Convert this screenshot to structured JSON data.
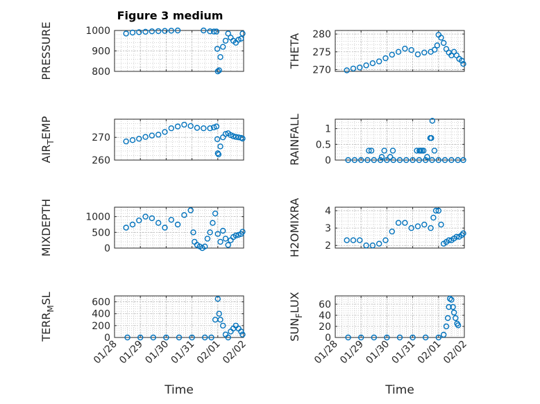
{
  "figure": {
    "title": "Figure 3 medium"
  },
  "colors": {
    "marker": "#0072BD",
    "axis": "#262626",
    "grid": "#b5b5b5",
    "background": "#ffffff"
  },
  "chart_data": [
    {
      "type": "scatter",
      "ylabel": "PRESSURE",
      "xlabel": "",
      "xlim": [
        "01/28",
        "02/02"
      ],
      "xticks": [],
      "ylim": [
        800,
        1000
      ],
      "yticks": [
        800,
        900,
        1000
      ],
      "grid": true,
      "x": [
        "01/28 10:48",
        "01/28 16:48",
        "01/28 22:48",
        "01/29 04:48",
        "01/29 10:48",
        "01/29 16:48",
        "01/29 22:48",
        "01/30 04:48",
        "01/30 10:48",
        "01/30 16:48",
        "01/30 22:48",
        "01/31 04:48",
        "01/31 10:48",
        "01/31 16:48",
        "01/31 20:24",
        "01/31 22:48",
        "01/31 23:31",
        "02/01 00:00",
        "02/01 01:12",
        "02/01 02:24",
        "02/01 04:48",
        "02/01 07:12",
        "02/01 09:36",
        "02/01 12:00",
        "02/01 14:24",
        "02/01 16:48",
        "02/01 19:12",
        "02/01 21:36",
        "02/01 23:02"
      ],
      "y": [
        985,
        990,
        992,
        994,
        996,
        997,
        998,
        999,
        1000,
        1001,
        1002,
        1001,
        1000,
        996,
        995,
        995,
        910,
        800,
        805,
        870,
        920,
        950,
        985,
        965,
        950,
        940,
        955,
        960,
        985
      ]
    },
    {
      "type": "scatter",
      "ylabel": "THETA",
      "xlabel": "",
      "xlim": [
        "01/28",
        "02/02"
      ],
      "xticks": [],
      "ylim": [
        269.5,
        281
      ],
      "yticks": [
        270,
        275,
        280
      ],
      "grid": true,
      "x": [
        "01/28 10:48",
        "01/28 16:48",
        "01/28 22:48",
        "01/29 04:48",
        "01/29 10:48",
        "01/29 16:48",
        "01/29 22:48",
        "01/30 04:48",
        "01/30 10:48",
        "01/30 16:48",
        "01/30 22:48",
        "01/31 04:48",
        "01/31 10:48",
        "01/31 16:48",
        "01/31 20:24",
        "01/31 22:48",
        "02/01 00:00",
        "02/01 02:24",
        "02/01 04:48",
        "02/01 07:12",
        "02/01 09:36",
        "02/01 12:00",
        "02/01 14:24",
        "02/01 16:48",
        "02/01 19:12",
        "02/01 21:36",
        "02/01 23:02"
      ],
      "y": [
        269.8,
        270.3,
        270.6,
        271.2,
        271.8,
        272.3,
        273.2,
        274.2,
        275.0,
        275.9,
        275.5,
        274.3,
        274.8,
        275.0,
        275.6,
        276.8,
        279.8,
        279.0,
        277.5,
        275.8,
        274.8,
        274.0,
        275.0,
        274.0,
        273.0,
        272.5,
        271.6
      ]
    },
    {
      "type": "scatter",
      "ylabel": "AIR_TEMP",
      "xlabel": "",
      "xlim": [
        "01/28",
        "02/02"
      ],
      "xticks": [],
      "ylim": [
        260,
        278
      ],
      "yticks": [
        260,
        270
      ],
      "grid": true,
      "x": [
        "01/28 10:48",
        "01/28 16:48",
        "01/28 22:48",
        "01/29 04:48",
        "01/29 10:48",
        "01/29 16:48",
        "01/29 22:48",
        "01/30 04:48",
        "01/30 10:48",
        "01/30 16:48",
        "01/30 22:48",
        "01/31 04:48",
        "01/31 10:48",
        "01/31 16:48",
        "01/31 20:24",
        "01/31 22:48",
        "01/31 23:31",
        "02/01 00:00",
        "02/01 00:43",
        "02/01 02:24",
        "02/01 04:48",
        "02/01 07:12",
        "02/01 09:36",
        "02/01 12:00",
        "02/01 14:24",
        "02/01 16:48",
        "02/01 19:12",
        "02/01 21:36",
        "02/01 23:02"
      ],
      "y": [
        268.2,
        268.8,
        269.4,
        270.2,
        270.8,
        271.2,
        272.4,
        274.0,
        274.8,
        275.6,
        275.0,
        274.2,
        274.0,
        274.0,
        274.4,
        274.8,
        269.2,
        263.0,
        262.5,
        266.0,
        270.0,
        271.5,
        271.8,
        271.0,
        270.5,
        270.2,
        270.0,
        269.8,
        269.5
      ]
    },
    {
      "type": "scatter",
      "ylabel": "RAINFALL",
      "xlabel": "",
      "xlim": [
        "01/28",
        "02/02"
      ],
      "xticks": [],
      "ylim": [
        0,
        1.3
      ],
      "yticks": [
        0,
        0.5,
        1
      ],
      "grid": true,
      "x": [
        "01/28 12:00",
        "01/28 18:00",
        "01/29 00:00",
        "01/29 06:00",
        "01/29 12:00",
        "01/29 18:00",
        "01/30 00:00",
        "01/30 06:00",
        "01/30 12:00",
        "01/30 18:00",
        "01/31 00:00",
        "01/31 06:00",
        "01/31 12:00",
        "01/31 18:00",
        "02/01 00:00",
        "02/01 06:00",
        "02/01 12:00",
        "02/01 18:00",
        "02/01 23:00",
        "01/29 07:12",
        "01/29 09:36",
        "01/29 19:12",
        "01/29 21:36",
        "01/30 03:07",
        "01/30 05:31",
        "01/31 03:50",
        "01/31 06:14",
        "01/31 07:12",
        "01/31 08:38",
        "01/31 10:05",
        "01/31 13:26",
        "01/31 16:19",
        "01/31 17:17",
        "01/31 18:14",
        "01/31 20:10"
      ],
      "y": [
        0,
        0,
        0,
        0,
        0,
        0,
        0,
        0,
        0,
        0,
        0,
        0,
        0,
        0,
        0,
        0,
        0,
        0,
        0,
        0.3,
        0.3,
        0.1,
        0.3,
        0.1,
        0.3,
        0.3,
        0.3,
        0.3,
        0.3,
        0.3,
        0.1,
        0.7,
        0.7,
        1.25,
        0.3
      ]
    },
    {
      "type": "scatter",
      "ylabel": "MIXDEPTH",
      "xlabel": "",
      "xlim": [
        "01/28",
        "02/02"
      ],
      "xticks": [],
      "ylim": [
        0,
        1300
      ],
      "yticks": [
        0,
        500,
        1000
      ],
      "grid": true,
      "x": [
        "01/28 10:48",
        "01/28 16:48",
        "01/28 22:48",
        "01/29 04:48",
        "01/29 10:48",
        "01/29 16:48",
        "01/29 22:48",
        "01/30 04:48",
        "01/30 10:48",
        "01/30 16:48",
        "01/30 22:48",
        "01/31 01:12",
        "01/31 02:24",
        "01/31 04:48",
        "01/31 07:12",
        "01/31 09:36",
        "01/31 12:00",
        "01/31 14:24",
        "01/31 16:48",
        "01/31 19:12",
        "01/31 21:36",
        "02/01 00:00",
        "02/01 02:24",
        "02/01 04:48",
        "02/01 07:12",
        "02/01 09:36",
        "02/01 12:00",
        "02/01 14:24",
        "02/01 16:48",
        "02/01 19:12",
        "02/01 21:36",
        "02/01 23:02"
      ],
      "y": [
        650,
        750,
        880,
        1000,
        950,
        800,
        650,
        900,
        750,
        1050,
        1200,
        500,
        200,
        100,
        50,
        0,
        50,
        300,
        500,
        800,
        1100,
        450,
        200,
        550,
        300,
        100,
        250,
        350,
        400,
        420,
        450,
        520
      ]
    },
    {
      "type": "scatter",
      "ylabel": "H2OMIXRA",
      "xlabel": "",
      "xlim": [
        "01/28",
        "02/02"
      ],
      "xticks": [],
      "ylim": [
        1.85,
        4.2
      ],
      "yticks": [
        2,
        3,
        4
      ],
      "grid": true,
      "x": [
        "01/28 10:48",
        "01/28 16:48",
        "01/28 22:48",
        "01/29 04:48",
        "01/29 10:48",
        "01/29 16:48",
        "01/29 22:48",
        "01/30 04:48",
        "01/30 10:48",
        "01/30 16:48",
        "01/30 22:48",
        "01/31 04:48",
        "01/31 10:48",
        "01/31 16:48",
        "01/31 19:12",
        "01/31 21:36",
        "02/01 00:00",
        "02/01 02:24",
        "02/01 04:48",
        "02/01 07:12",
        "02/01 09:36",
        "02/01 12:00",
        "02/01 14:24",
        "02/01 16:48",
        "02/01 19:12",
        "02/01 21:36",
        "02/01 23:02"
      ],
      "y": [
        2.3,
        2.3,
        2.3,
        2.0,
        2.0,
        2.1,
        2.3,
        2.8,
        3.3,
        3.3,
        3.0,
        3.1,
        3.2,
        3.0,
        3.6,
        4.0,
        4.0,
        3.2,
        2.1,
        2.2,
        2.3,
        2.3,
        2.4,
        2.5,
        2.5,
        2.6,
        2.7
      ]
    },
    {
      "type": "scatter",
      "ylabel": "TERR_MSL",
      "xlabel": "Time",
      "xlim": [
        "01/28",
        "02/02"
      ],
      "xticks": [
        "01/28",
        "01/29",
        "01/30",
        "01/31",
        "02/01",
        "02/02"
      ],
      "ylim": [
        0,
        700
      ],
      "yticks": [
        0,
        200,
        400,
        600
      ],
      "grid": true,
      "x": [
        "01/28 12:00",
        "01/29 00:00",
        "01/29 12:00",
        "01/30 00:00",
        "01/30 12:00",
        "01/31 00:00",
        "01/31 12:00",
        "01/31 18:00",
        "01/31 21:36",
        "02/01 00:00",
        "02/01 01:12",
        "02/01 02:24",
        "02/01 04:48",
        "02/01 07:12",
        "02/01 09:36",
        "02/01 12:00",
        "02/01 14:24",
        "02/01 16:48",
        "02/01 19:12",
        "02/01 21:36",
        "02/01 23:02"
      ],
      "y": [
        0,
        0,
        0,
        0,
        0,
        0,
        0,
        0,
        300,
        650,
        400,
        300,
        200,
        50,
        0,
        100,
        150,
        200,
        150,
        100,
        50
      ]
    },
    {
      "type": "scatter",
      "ylabel": "SUN_FLUX",
      "xlabel": "Time",
      "xlim": [
        "01/28",
        "02/02"
      ],
      "xticks": [
        "01/28",
        "01/29",
        "01/30",
        "01/31",
        "02/01",
        "02/02"
      ],
      "ylim": [
        0,
        75
      ],
      "yticks": [
        0,
        20,
        40,
        60
      ],
      "grid": true,
      "x": [
        "01/28 12:00",
        "01/29 00:00",
        "01/29 12:00",
        "01/30 00:00",
        "01/30 12:00",
        "01/31 00:00",
        "01/31 12:00",
        "02/01 00:00",
        "02/01 04:48",
        "02/01 07:12",
        "02/01 08:38",
        "02/01 09:36",
        "02/01 10:34",
        "02/01 12:00",
        "02/01 13:26",
        "02/01 14:24",
        "02/01 15:50",
        "02/01 17:17",
        "02/01 18:14"
      ],
      "y": [
        0,
        0,
        0,
        0,
        0,
        0,
        0,
        0,
        5,
        20,
        35,
        55,
        70,
        68,
        55,
        45,
        35,
        25,
        22
      ]
    }
  ]
}
